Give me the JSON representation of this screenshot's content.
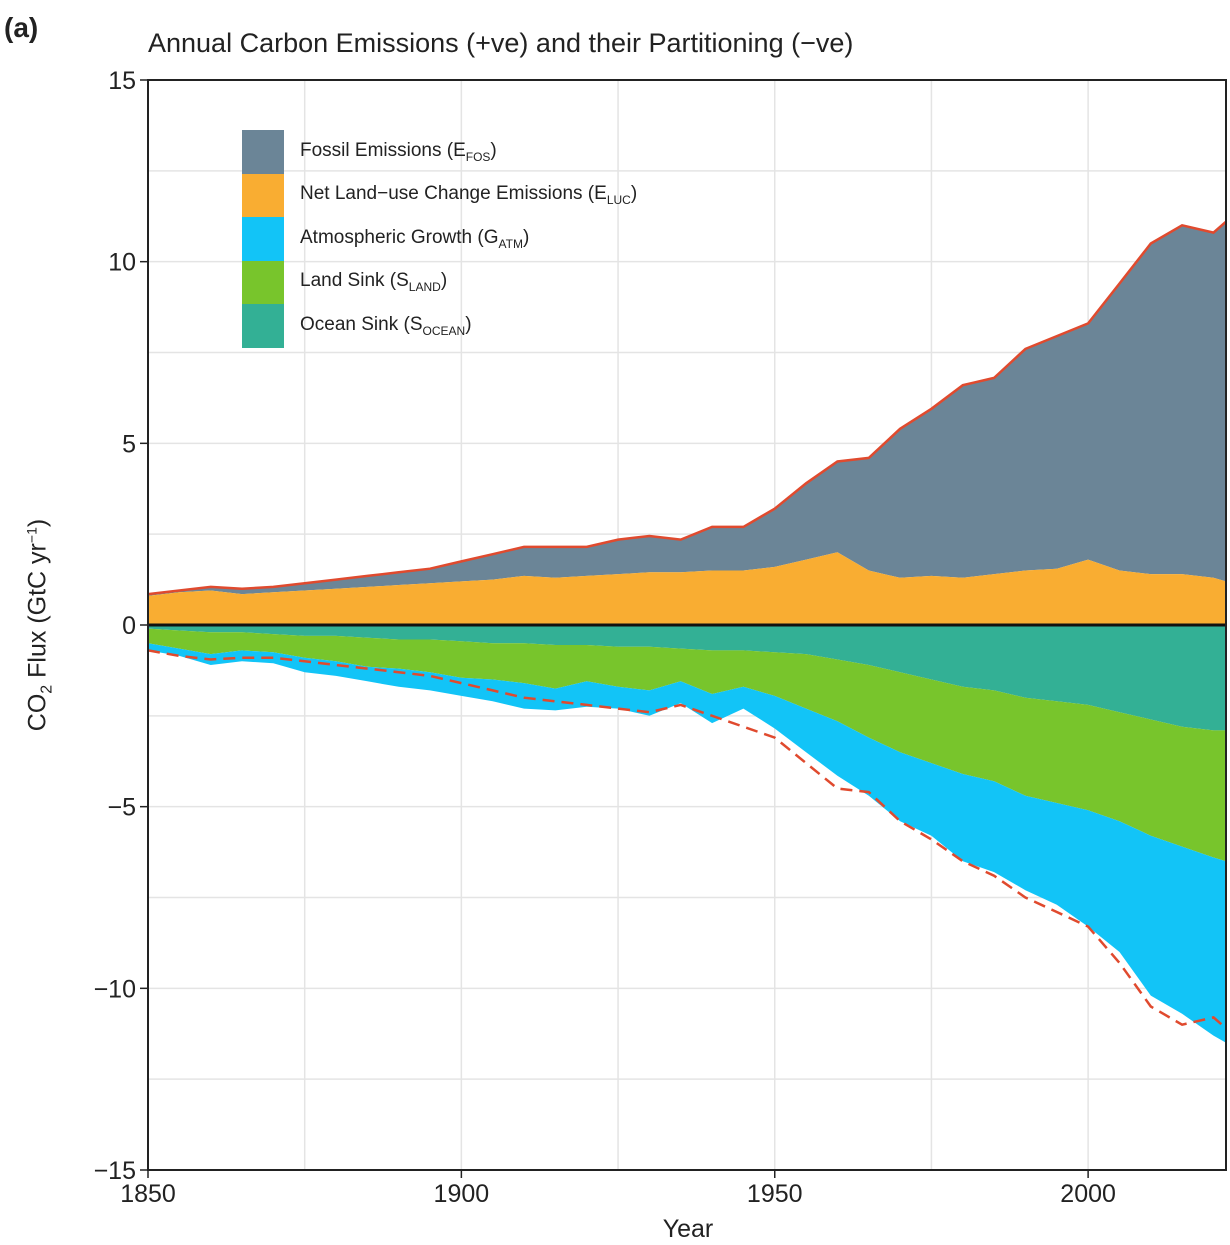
{
  "panel_label": "(a)",
  "chart_data": {
    "type": "area",
    "title": "Annual Carbon Emissions (+ve) and their Partitioning (−ve)",
    "xlabel": "Year",
    "ylabel": {
      "pre": "CO",
      "sub": "2",
      "mid": " Flux (GtC yr",
      "sup": "−1",
      "post": ")"
    },
    "xlim": [
      1850,
      2022
    ],
    "ylim": [
      -15,
      15
    ],
    "xticks": [
      1850,
      1900,
      1950,
      2000
    ],
    "yticks": [
      15,
      10,
      5,
      0,
      -5,
      -10,
      -15
    ],
    "ytick_labels": [
      "15",
      "10",
      "5",
      "0",
      "−5",
      "−10",
      "−15"
    ],
    "grid": true,
    "legend_position": "top-left",
    "legend": [
      {
        "id": "fos",
        "label": "Fossil Emissions (E",
        "sub": "FOS",
        "color": "#6b8597"
      },
      {
        "id": "luc",
        "label": "Net Land−use Change Emissions (E",
        "sub": "LUC",
        "color": "#f9ad32"
      },
      {
        "id": "atm",
        "label": "Atmospheric Growth (G",
        "sub": "ATM",
        "color": "#12c4f7"
      },
      {
        "id": "land",
        "label": "Land Sink (S",
        "sub": "LAND",
        "color": "#78c52c"
      },
      {
        "id": "ocean",
        "label": "Ocean Sink (S",
        "sub": "OCEAN",
        "color": "#33b095"
      }
    ],
    "colors": {
      "total_line": "#e04a2e",
      "budget_line": "#e04a2e",
      "zero_line": "#111111"
    },
    "years": [
      1850,
      1855,
      1860,
      1865,
      1870,
      1875,
      1880,
      1885,
      1890,
      1895,
      1900,
      1905,
      1910,
      1915,
      1920,
      1925,
      1930,
      1935,
      1940,
      1945,
      1950,
      1955,
      1960,
      1965,
      1970,
      1975,
      1980,
      1985,
      1990,
      1995,
      2000,
      2005,
      2010,
      2015,
      2020,
      2022
    ],
    "series": [
      {
        "name": "Net Land−use Change Emissions (ELUC)",
        "id": "luc",
        "values": [
          0.8,
          0.9,
          0.95,
          0.85,
          0.9,
          0.95,
          1.0,
          1.05,
          1.1,
          1.15,
          1.2,
          1.25,
          1.35,
          1.3,
          1.35,
          1.4,
          1.45,
          1.45,
          1.5,
          1.5,
          1.6,
          1.8,
          2.0,
          1.5,
          1.3,
          1.35,
          1.3,
          1.4,
          1.5,
          1.55,
          1.8,
          1.5,
          1.4,
          1.4,
          1.3,
          1.2
        ]
      },
      {
        "name": "Fossil Emissions (EFOS)",
        "id": "fos",
        "values": [
          0.05,
          0.05,
          0.1,
          0.15,
          0.15,
          0.2,
          0.25,
          0.3,
          0.35,
          0.4,
          0.55,
          0.7,
          0.8,
          0.85,
          0.8,
          0.95,
          1.0,
          0.9,
          1.2,
          1.2,
          1.6,
          2.1,
          2.5,
          3.1,
          4.1,
          4.6,
          5.3,
          5.4,
          6.1,
          6.4,
          6.5,
          7.9,
          9.1,
          9.6,
          9.5,
          9.9
        ]
      },
      {
        "name": "Ocean Sink (SOCEAN)",
        "id": "ocean",
        "values": [
          -0.1,
          -0.15,
          -0.2,
          -0.2,
          -0.25,
          -0.3,
          -0.3,
          -0.35,
          -0.4,
          -0.4,
          -0.45,
          -0.5,
          -0.5,
          -0.55,
          -0.55,
          -0.6,
          -0.6,
          -0.65,
          -0.7,
          -0.7,
          -0.75,
          -0.8,
          -0.95,
          -1.1,
          -1.3,
          -1.5,
          -1.7,
          -1.8,
          -2.0,
          -2.1,
          -2.2,
          -2.4,
          -2.6,
          -2.8,
          -2.9,
          -2.9
        ]
      },
      {
        "name": "Land Sink (SLAND)",
        "id": "land",
        "values": [
          -0.4,
          -0.5,
          -0.6,
          -0.5,
          -0.5,
          -0.6,
          -0.7,
          -0.8,
          -0.8,
          -0.9,
          -1.0,
          -1.0,
          -1.1,
          -1.2,
          -1.0,
          -1.1,
          -1.2,
          -0.9,
          -1.2,
          -1.0,
          -1.2,
          -1.5,
          -1.7,
          -2.0,
          -2.2,
          -2.3,
          -2.4,
          -2.5,
          -2.7,
          -2.8,
          -2.9,
          -3.0,
          -3.2,
          -3.3,
          -3.5,
          -3.6
        ]
      },
      {
        "name": "Atmospheric Growth (GATM)",
        "id": "atm",
        "values": [
          -0.2,
          -0.2,
          -0.3,
          -0.3,
          -0.3,
          -0.4,
          -0.4,
          -0.4,
          -0.5,
          -0.5,
          -0.5,
          -0.6,
          -0.7,
          -0.6,
          -0.7,
          -0.6,
          -0.7,
          -0.6,
          -0.8,
          -0.6,
          -0.9,
          -1.2,
          -1.5,
          -1.6,
          -1.9,
          -2.0,
          -2.4,
          -2.5,
          -2.6,
          -2.8,
          -3.2,
          -3.6,
          -4.4,
          -4.6,
          -4.9,
          -5.0
        ]
      }
    ],
    "total_emissions": [
      0.85,
      0.95,
      1.05,
      1.0,
      1.05,
      1.15,
      1.25,
      1.35,
      1.45,
      1.55,
      1.75,
      1.95,
      2.15,
      2.15,
      2.15,
      2.35,
      2.45,
      2.35,
      2.7,
      2.7,
      3.2,
      3.9,
      4.5,
      4.6,
      5.4,
      5.95,
      6.6,
      6.8,
      7.6,
      7.95,
      8.3,
      9.4,
      10.5,
      11.0,
      10.8,
      11.1
    ],
    "budget_line": [
      -0.7,
      -0.85,
      -0.95,
      -0.9,
      -0.9,
      -1.0,
      -1.1,
      -1.2,
      -1.3,
      -1.4,
      -1.6,
      -1.8,
      -2.0,
      -2.1,
      -2.2,
      -2.3,
      -2.4,
      -2.2,
      -2.5,
      -2.8,
      -3.1,
      -3.8,
      -4.5,
      -4.6,
      -5.4,
      -5.9,
      -6.5,
      -6.9,
      -7.5,
      -7.9,
      -8.3,
      -9.3,
      -10.5,
      -11.0,
      -10.8,
      -11.1
    ]
  }
}
